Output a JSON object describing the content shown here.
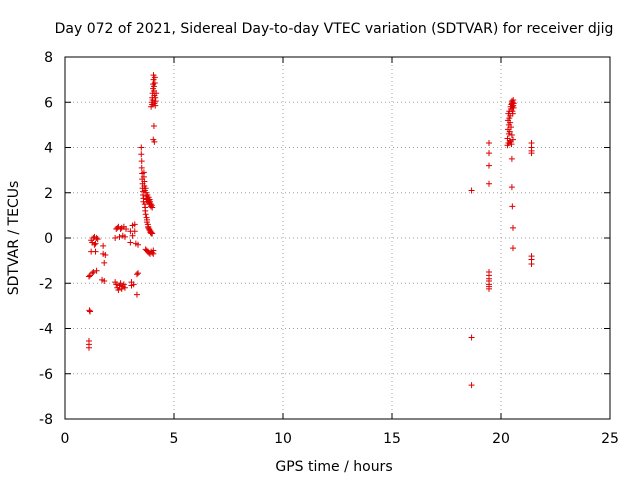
{
  "chart_data": {
    "type": "scatter",
    "title": "Day 072 of 2021, Sidereal Day-to-day VTEC variation (SDTVAR) for receiver djig",
    "xlabel": "GPS time / hours",
    "ylabel": "SDTVAR / TECUs",
    "xlim": [
      0,
      25
    ],
    "ylim": [
      -8,
      8
    ],
    "xticks": [
      0,
      5,
      10,
      15,
      20,
      25
    ],
    "yticks": [
      -8,
      -6,
      -4,
      -2,
      0,
      2,
      4,
      6,
      8
    ],
    "grid": true,
    "marker": "+",
    "color": "#dd0000",
    "series": [
      {
        "name": "SDTVAR",
        "points": [
          [
            1.1,
            -4.55
          ],
          [
            1.1,
            -4.7
          ],
          [
            1.1,
            -4.85
          ],
          [
            1.12,
            -3.2
          ],
          [
            1.15,
            -3.25
          ],
          [
            1.1,
            -1.7
          ],
          [
            1.15,
            -1.65
          ],
          [
            1.2,
            -0.6
          ],
          [
            1.2,
            -0.1
          ],
          [
            1.25,
            -0.2
          ],
          [
            1.25,
            -1.55
          ],
          [
            1.3,
            -1.5
          ],
          [
            1.3,
            0.0
          ],
          [
            1.35,
            0.05
          ],
          [
            1.35,
            -0.3
          ],
          [
            1.4,
            -0.25
          ],
          [
            1.4,
            -0.6
          ],
          [
            1.45,
            -1.45
          ],
          [
            1.45,
            0.0
          ],
          [
            1.5,
            -0.05
          ],
          [
            1.7,
            -1.85
          ],
          [
            1.75,
            -0.35
          ],
          [
            1.75,
            -0.7
          ],
          [
            1.8,
            -1.1
          ],
          [
            1.8,
            -1.9
          ],
          [
            1.85,
            -0.75
          ],
          [
            2.3,
            0.0
          ],
          [
            2.3,
            -1.95
          ],
          [
            2.35,
            -2.05
          ],
          [
            2.35,
            0.4
          ],
          [
            2.4,
            0.45
          ],
          [
            2.4,
            -2.2
          ],
          [
            2.45,
            0.5
          ],
          [
            2.45,
            -2.3
          ],
          [
            2.5,
            0.05
          ],
          [
            2.5,
            -2.1
          ],
          [
            2.55,
            0.4
          ],
          [
            2.55,
            -2.0
          ],
          [
            2.6,
            0.45
          ],
          [
            2.6,
            -2.25
          ],
          [
            2.65,
            0.1
          ],
          [
            2.65,
            -2.15
          ],
          [
            2.7,
            0.5
          ],
          [
            2.7,
            -2.05
          ],
          [
            2.75,
            0.05
          ],
          [
            2.75,
            -2.2
          ],
          [
            2.8,
            0.4
          ],
          [
            3.0,
            0.3
          ],
          [
            3.0,
            -0.2
          ],
          [
            3.05,
            -1.95
          ],
          [
            3.05,
            -2.1
          ],
          [
            3.1,
            0.55
          ],
          [
            3.1,
            0.1
          ],
          [
            3.15,
            -2.05
          ],
          [
            3.2,
            0.3
          ],
          [
            3.2,
            0.6
          ],
          [
            3.25,
            -0.25
          ],
          [
            3.3,
            -1.6
          ],
          [
            3.3,
            -2.5
          ],
          [
            3.35,
            -1.55
          ],
          [
            3.35,
            -0.3
          ],
          [
            3.5,
            4.0
          ],
          [
            3.5,
            3.7
          ],
          [
            3.52,
            3.4
          ],
          [
            3.52,
            3.1
          ],
          [
            3.54,
            2.85
          ],
          [
            3.54,
            2.6
          ],
          [
            3.56,
            2.4
          ],
          [
            3.56,
            2.2
          ],
          [
            3.58,
            2.05
          ],
          [
            3.58,
            1.9
          ],
          [
            3.6,
            1.75
          ],
          [
            3.6,
            1.6
          ],
          [
            3.62,
            2.9
          ],
          [
            3.62,
            2.7
          ],
          [
            3.64,
            2.5
          ],
          [
            3.64,
            2.3
          ],
          [
            3.66,
            2.1
          ],
          [
            3.66,
            1.5
          ],
          [
            3.68,
            1.35
          ],
          [
            3.68,
            1.2
          ],
          [
            3.7,
            1.05
          ],
          [
            3.7,
            2.2
          ],
          [
            3.72,
            2.0
          ],
          [
            3.72,
            1.85
          ],
          [
            3.74,
            1.7
          ],
          [
            3.74,
            0.9
          ],
          [
            3.76,
            0.8
          ],
          [
            3.76,
            0.7
          ],
          [
            3.78,
            1.9
          ],
          [
            3.78,
            1.75
          ],
          [
            3.8,
            1.6
          ],
          [
            3.8,
            0.6
          ],
          [
            3.82,
            0.5
          ],
          [
            3.82,
            0.45
          ],
          [
            3.84,
            1.8
          ],
          [
            3.84,
            1.65
          ],
          [
            3.86,
            1.55
          ],
          [
            3.86,
            0.4
          ],
          [
            3.88,
            0.35
          ],
          [
            3.88,
            1.7
          ],
          [
            3.9,
            1.6
          ],
          [
            3.9,
            1.5
          ],
          [
            3.92,
            0.3
          ],
          [
            3.92,
            0.25
          ],
          [
            3.94,
            1.5
          ],
          [
            3.94,
            1.4
          ],
          [
            3.96,
            0.2
          ],
          [
            3.96,
            0.25
          ],
          [
            3.98,
            1.45
          ],
          [
            4.0,
            1.35
          ],
          [
            4.0,
            0.2
          ],
          [
            3.7,
            -0.5
          ],
          [
            3.75,
            -0.55
          ],
          [
            3.8,
            -0.6
          ],
          [
            3.85,
            -0.65
          ],
          [
            3.9,
            -0.7
          ],
          [
            3.95,
            -0.6
          ],
          [
            4.0,
            -0.65
          ],
          [
            4.05,
            -0.55
          ],
          [
            4.05,
            -0.7
          ],
          [
            3.95,
            5.8
          ],
          [
            3.98,
            6.0
          ],
          [
            4.0,
            6.2
          ],
          [
            4.0,
            5.9
          ],
          [
            4.02,
            6.4
          ],
          [
            4.02,
            6.1
          ],
          [
            4.04,
            6.6
          ],
          [
            4.04,
            6.8
          ],
          [
            4.06,
            7.0
          ],
          [
            4.06,
            7.2
          ],
          [
            4.08,
            6.7
          ],
          [
            4.08,
            6.5
          ],
          [
            4.1,
            5.95
          ],
          [
            4.1,
            6.3
          ],
          [
            4.12,
            7.1
          ],
          [
            4.12,
            6.85
          ],
          [
            4.14,
            6.2
          ],
          [
            4.14,
            5.85
          ],
          [
            4.16,
            6.05
          ],
          [
            4.18,
            6.4
          ],
          [
            4.08,
            4.95
          ],
          [
            4.05,
            4.35
          ],
          [
            4.1,
            4.25
          ],
          [
            18.65,
            2.1
          ],
          [
            18.65,
            -4.4
          ],
          [
            18.65,
            -6.5
          ],
          [
            19.45,
            4.2
          ],
          [
            19.45,
            3.75
          ],
          [
            19.45,
            3.2
          ],
          [
            19.45,
            2.4
          ],
          [
            19.45,
            -1.5
          ],
          [
            19.45,
            -1.65
          ],
          [
            19.45,
            -1.8
          ],
          [
            19.45,
            -2.05
          ],
          [
            19.45,
            -2.15
          ],
          [
            19.45,
            -2.25
          ],
          [
            19.45,
            -1.9
          ],
          [
            20.3,
            4.1
          ],
          [
            20.3,
            4.4
          ],
          [
            20.32,
            4.8
          ],
          [
            20.32,
            5.2
          ],
          [
            20.34,
            5.5
          ],
          [
            20.34,
            4.2
          ],
          [
            20.36,
            4.6
          ],
          [
            20.36,
            5.0
          ],
          [
            20.38,
            5.3
          ],
          [
            20.38,
            5.6
          ],
          [
            20.4,
            4.3
          ],
          [
            20.4,
            4.7
          ],
          [
            20.42,
            5.1
          ],
          [
            20.42,
            5.4
          ],
          [
            20.44,
            5.8
          ],
          [
            20.44,
            4.25
          ],
          [
            20.46,
            4.9
          ],
          [
            20.46,
            5.7
          ],
          [
            20.48,
            5.9
          ],
          [
            20.48,
            4.15
          ],
          [
            20.5,
            5.95
          ],
          [
            20.5,
            6.05
          ],
          [
            20.52,
            5.6
          ],
          [
            20.52,
            5.8
          ],
          [
            20.54,
            6.0
          ],
          [
            20.54,
            5.5
          ],
          [
            20.56,
            5.85
          ],
          [
            20.56,
            6.1
          ],
          [
            20.58,
            5.75
          ],
          [
            20.58,
            5.95
          ],
          [
            20.5,
            4.55
          ],
          [
            20.55,
            4.35
          ],
          [
            20.5,
            3.5
          ],
          [
            20.5,
            2.25
          ],
          [
            20.52,
            1.4
          ],
          [
            20.55,
            0.45
          ],
          [
            20.55,
            -0.45
          ],
          [
            21.4,
            4.2
          ],
          [
            21.4,
            4.0
          ],
          [
            21.4,
            3.85
          ],
          [
            21.4,
            3.75
          ],
          [
            21.4,
            -0.8
          ],
          [
            21.4,
            -0.95
          ],
          [
            21.4,
            -1.15
          ]
        ]
      }
    ]
  }
}
